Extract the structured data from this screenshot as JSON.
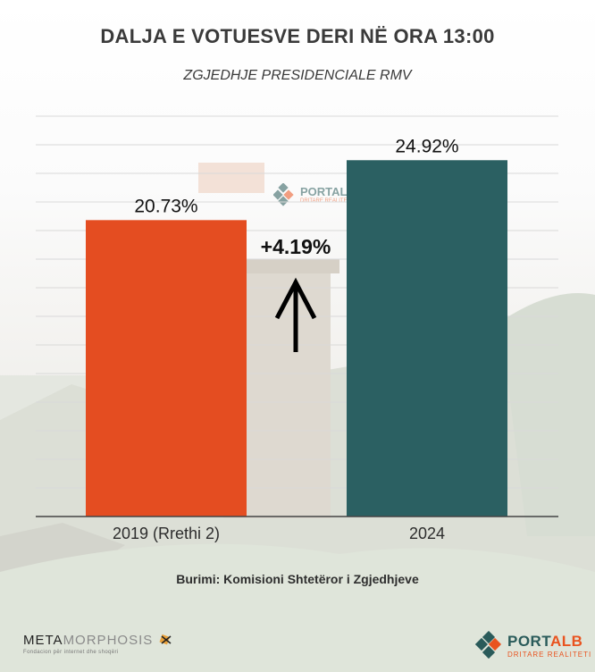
{
  "title": "DALJA E VOTUESVE DERI NË ORA 13:00",
  "subtitle": "ZGJEDHJE PRESIDENCIALE RMV",
  "source": "Burimi: Komisioni Shtetëror i Zgjedhjeve",
  "chart_data": {
    "type": "bar",
    "title": "DALJA E VOTUESVE DERI NË ORA 13:00",
    "subtitle": "ZGJEDHJE PRESIDENCIALE RMV",
    "categories": [
      "2019 (Rrethi 2)",
      "2024"
    ],
    "values": [
      20.73,
      24.92
    ],
    "value_labels": [
      "20.73%",
      "24.92%"
    ],
    "colors": [
      "#e44d21",
      "#2b6062"
    ],
    "ylim": [
      0,
      28
    ],
    "grid": true,
    "annotation": {
      "text": "+4.19%",
      "arrow": "up-arrow-icon"
    }
  },
  "logos": {
    "left": {
      "word_dark": "META",
      "word_light": "MORPHOSIS",
      "tagline": "Fondacion për internet dhe shoqëri",
      "icon": "spark-icon"
    },
    "right": {
      "word_main": "PORT",
      "word_accent": "ALB",
      "tagline": "DRITARE REALITETI",
      "icon": "portalb-diamond-icon"
    },
    "watermark": {
      "word": "PORTALB",
      "tagline": "DRITARE REALITETI"
    }
  }
}
